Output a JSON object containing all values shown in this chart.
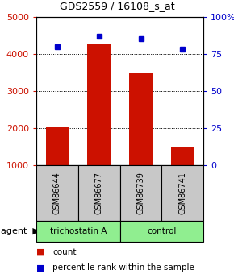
{
  "title": "GDS2559 / 16108_s_at",
  "samples": [
    "GSM86644",
    "GSM86677",
    "GSM86739",
    "GSM86741"
  ],
  "counts": [
    2050,
    4250,
    3500,
    1480
  ],
  "percentiles": [
    80,
    87,
    85,
    78
  ],
  "bar_color": "#CC1100",
  "dot_color": "#0000CC",
  "left_ylim": [
    1000,
    5000
  ],
  "left_yticks": [
    1000,
    2000,
    3000,
    4000,
    5000
  ],
  "right_ylim": [
    0,
    100
  ],
  "right_yticks": [
    0,
    25,
    50,
    75,
    100
  ],
  "right_yticklabels": [
    "0",
    "25",
    "50",
    "75",
    "100%"
  ],
  "sample_box_color": "#C8C8C8",
  "green_color": "#90EE90",
  "group_ranges": [
    [
      0,
      2,
      "trichostatin A"
    ],
    [
      2,
      4,
      "control"
    ]
  ],
  "legend_count_color": "#CC1100",
  "legend_pct_color": "#0000CC",
  "bg_color": "#ffffff"
}
